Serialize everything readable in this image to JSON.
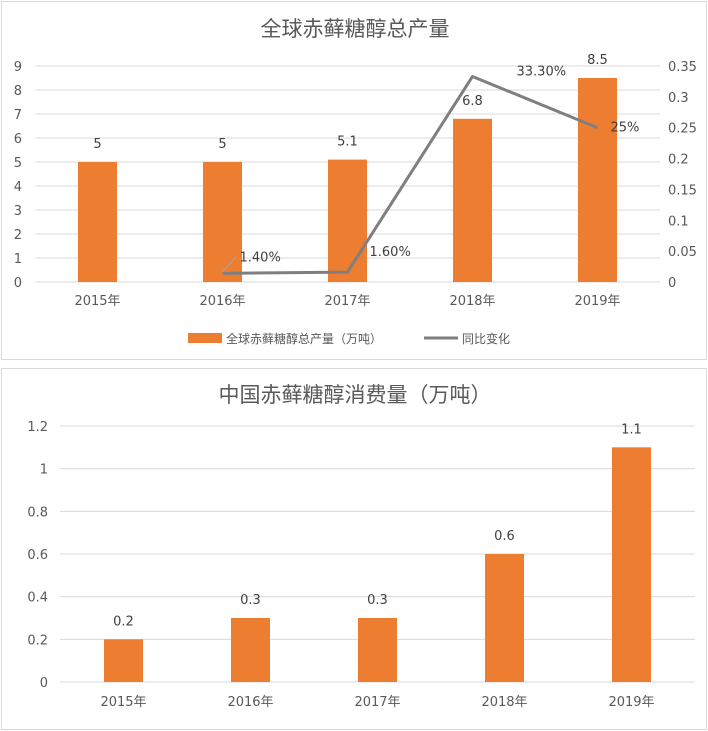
{
  "chart_data": [
    {
      "type": "bar",
      "title": "全球赤藓糖醇总产量",
      "categories": [
        "2015年",
        "2016年",
        "2017年",
        "2018年",
        "2019年"
      ],
      "series": [
        {
          "name": "全球赤藓糖醇总产量（万吨）",
          "type": "bar",
          "axis": "left",
          "color": "#ED7D31",
          "values": [
            5,
            5,
            5.1,
            6.8,
            8.5
          ],
          "labels": [
            "5",
            "5",
            "5.1",
            "6.8",
            "8.5"
          ]
        },
        {
          "name": "同比变化",
          "type": "line",
          "axis": "right",
          "color": "#7F7F7F",
          "values": [
            null,
            0.014,
            0.016,
            0.333,
            0.25
          ],
          "labels": [
            "",
            "1.40%",
            "1.60%",
            "33.30%",
            "25%"
          ]
        }
      ],
      "y_left": {
        "ylim": [
          0,
          9
        ],
        "ticks": [
          "0",
          "1",
          "2",
          "3",
          "4",
          "5",
          "6",
          "7",
          "8",
          "9"
        ]
      },
      "y_right": {
        "ylim": [
          0,
          0.35
        ],
        "ticks": [
          "0",
          "0.05",
          "0.1",
          "0.15",
          "0.2",
          "0.25",
          "0.3",
          "0.35"
        ]
      },
      "grid": true,
      "legend": "bottom"
    },
    {
      "type": "bar",
      "title": "中国赤藓糖醇消费量（万吨）",
      "categories": [
        "2015年",
        "2016年",
        "2017年",
        "2018年",
        "2019年"
      ],
      "series": [
        {
          "name": "",
          "color": "#ED7D31",
          "values": [
            0.2,
            0.3,
            0.3,
            0.6,
            1.1
          ],
          "labels": [
            "0.2",
            "0.3",
            "0.3",
            "0.6",
            "1.1"
          ]
        }
      ],
      "y": {
        "ylim": [
          0,
          1.2
        ],
        "ticks": [
          "0",
          "0.2",
          "0.4",
          "0.6",
          "0.8",
          "1",
          "1.2"
        ]
      },
      "grid": true,
      "legend": "none"
    }
  ]
}
